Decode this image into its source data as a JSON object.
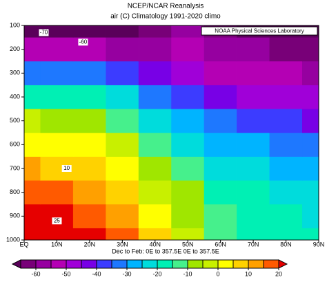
{
  "chart_data": {
    "type": "contour",
    "title": "NCEP/NCAR Reanalysis",
    "subtitle": "air (C) Climatology 1991-2020 climo",
    "legend_text": "NOAA Physical Sciences Laboratory",
    "x_label": "Dec to Feb:  0E to 357.5E  0E to 357.5E",
    "x": [
      0,
      10,
      20,
      30,
      40,
      50,
      60,
      70,
      80,
      90
    ],
    "y": [
      1000,
      900,
      800,
      700,
      600,
      500,
      400,
      300,
      200,
      100
    ],
    "xlim": [
      0,
      90
    ],
    "ylim": [
      1000,
      100
    ],
    "xticks": [
      {
        "value": 0,
        "label": "EQ"
      },
      {
        "value": 10,
        "label": "10N"
      },
      {
        "value": 20,
        "label": "20N"
      },
      {
        "value": 30,
        "label": "30N"
      },
      {
        "value": 40,
        "label": "40N"
      },
      {
        "value": 50,
        "label": "50N"
      },
      {
        "value": 60,
        "label": "60N"
      },
      {
        "value": 70,
        "label": "70N"
      },
      {
        "value": 80,
        "label": "80N"
      },
      {
        "value": 90,
        "label": "90N"
      }
    ],
    "yticks": [
      100,
      200,
      300,
      400,
      500,
      600,
      700,
      800,
      900,
      1000
    ],
    "values": [
      [
        26,
        25,
        22,
        16,
        8,
        -2,
        -14,
        -18,
        -19,
        -19
      ],
      [
        22,
        21,
        18,
        12,
        4,
        -6,
        -15,
        -19,
        -20,
        -21
      ],
      [
        16,
        15,
        12,
        7,
        -1,
        -10,
        -17,
        -20,
        -22,
        -23
      ],
      [
        10,
        9,
        7,
        1,
        -6,
        -15,
        -21,
        -24,
        -26,
        -27
      ],
      [
        3,
        2,
        0,
        -5,
        -13,
        -21,
        -27,
        -30,
        -32,
        -33
      ],
      [
        -5,
        -6,
        -8,
        -13,
        -21,
        -29,
        -35,
        -38,
        -40,
        -41
      ],
      [
        -16,
        -17,
        -19,
        -24,
        -31,
        -39,
        -44,
        -46,
        -48,
        -49
      ],
      [
        -31,
        -32,
        -34,
        -38,
        -44,
        -49,
        -52,
        -53,
        -55,
        -56
      ],
      [
        -53,
        -53,
        -54,
        -56,
        -57,
        -55,
        -56,
        -58,
        -61,
        -63
      ],
      [
        -78,
        -76,
        -73,
        -68,
        -62,
        -60,
        -62,
        -66,
        -70,
        -74
      ]
    ],
    "levels": [
      -65,
      -60,
      -55,
      -50,
      -45,
      -40,
      -35,
      -30,
      -25,
      -20,
      -15,
      -10,
      -5,
      0,
      5,
      10,
      15,
      20
    ],
    "colors": [
      "#5a005a",
      "#780078",
      "#9600a0",
      "#b400b4",
      "#a000d8",
      "#7800e6",
      "#3c3cff",
      "#1e78ff",
      "#00b4ff",
      "#00dcdc",
      "#00f0b4",
      "#46f08c",
      "#a0e600",
      "#c8f000",
      "#ffff00",
      "#ffd200",
      "#ffa000",
      "#ff5a00",
      "#e60000"
    ],
    "colorbar_ticks": [
      -60,
      -50,
      -40,
      -30,
      -20,
      -10,
      0,
      10,
      20
    ],
    "annotations": [
      {
        "text": "-70",
        "x": 6,
        "y": 130
      },
      {
        "text": "-60",
        "x": 18,
        "y": 170
      },
      {
        "text": "10",
        "x": 13,
        "y": 700
      },
      {
        "text": "25",
        "x": 10,
        "y": 920
      }
    ]
  }
}
